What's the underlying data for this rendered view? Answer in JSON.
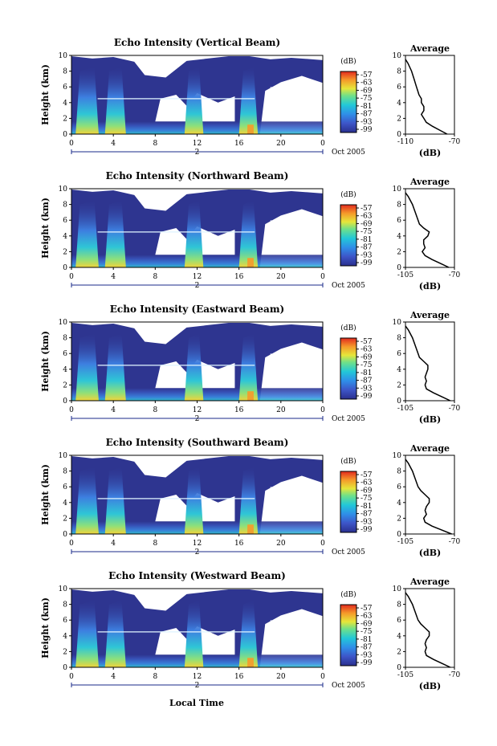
{
  "figure": {
    "x_axis_label": "Local Time",
    "date_label": "Oct 2005",
    "day_label": "2",
    "average_title": "Average",
    "colorbar_unit": "(dB)",
    "average_xlabel": "(dB)"
  },
  "chart_data": [
    {
      "type": "heatmap",
      "title": "Echo Intensity (Vertical Beam)",
      "ylabel": "Height (km)",
      "xlim": [
        0,
        24
      ],
      "ylim": [
        0,
        10
      ],
      "x_ticks": [
        "0",
        "4",
        "8",
        "12",
        "16",
        "20",
        "0"
      ],
      "y_ticks": [
        "0",
        "2",
        "4",
        "6",
        "8",
        "10"
      ],
      "colorbar_ticks": [
        "-57",
        "-63",
        "-69",
        "-75",
        "-81",
        "-87",
        "-93",
        "-99"
      ],
      "profile": {
        "xlim": [
          -110,
          -70
        ],
        "x_ticks": [
          "-110",
          "-70"
        ],
        "y_ticks": [
          "0",
          "2",
          "4",
          "6",
          "8",
          "10"
        ],
        "height": [
          0,
          0.5,
          1,
          1.5,
          2,
          2.5,
          3,
          3.5,
          4,
          4.5,
          5,
          5.5,
          6,
          7,
          8,
          9,
          9.5
        ],
        "db": [
          -76,
          -82,
          -88,
          -93,
          -95,
          -97,
          -95,
          -95,
          -97,
          -97,
          -99,
          -100,
          -101,
          -103,
          -105,
          -108,
          -110
        ]
      }
    },
    {
      "type": "heatmap",
      "title": "Echo Intensity (Northward Beam)",
      "ylabel": "Height (km)",
      "xlim": [
        0,
        24
      ],
      "ylim": [
        0,
        10
      ],
      "x_ticks": [
        "0",
        "4",
        "8",
        "12",
        "16",
        "20",
        "0"
      ],
      "y_ticks": [
        "0",
        "2",
        "4",
        "6",
        "8",
        "10"
      ],
      "colorbar_ticks": [
        "-57",
        "-63",
        "-69",
        "-75",
        "-81",
        "-87",
        "-93",
        "-99"
      ],
      "profile": {
        "xlim": [
          -105,
          -70
        ],
        "x_ticks": [
          "-105",
          "-70"
        ],
        "y_ticks": [
          "0",
          "2",
          "4",
          "6",
          "8",
          "10"
        ],
        "height": [
          0,
          0.5,
          1,
          1.5,
          2,
          2.5,
          3,
          3.5,
          4,
          4.5,
          5,
          5.5,
          6,
          7,
          8,
          9,
          9.5
        ],
        "db": [
          -74,
          -80,
          -86,
          -91,
          -93,
          -91,
          -92,
          -92,
          -89,
          -88,
          -92,
          -95,
          -96,
          -98,
          -100,
          -103,
          -105
        ]
      }
    },
    {
      "type": "heatmap",
      "title": "Echo Intensity (Eastward Beam)",
      "ylabel": "Height (km)",
      "xlim": [
        0,
        24
      ],
      "ylim": [
        0,
        10
      ],
      "x_ticks": [
        "0",
        "4",
        "8",
        "12",
        "16",
        "20",
        "0"
      ],
      "y_ticks": [
        "0",
        "2",
        "4",
        "6",
        "8",
        "10"
      ],
      "colorbar_ticks": [
        "-57",
        "-63",
        "-69",
        "-75",
        "-81",
        "-87",
        "-93",
        "-99"
      ],
      "profile": {
        "xlim": [
          -105,
          -70
        ],
        "x_ticks": [
          "-105",
          "-70"
        ],
        "y_ticks": [
          "0",
          "2",
          "4",
          "6",
          "8",
          "10"
        ],
        "height": [
          0,
          0.5,
          1,
          1.5,
          2,
          2.5,
          3,
          3.5,
          4,
          4.5,
          5,
          5.5,
          6,
          7,
          8,
          9,
          9.5
        ],
        "db": [
          -73,
          -79,
          -85,
          -90,
          -91,
          -90,
          -91,
          -90,
          -89,
          -89,
          -92,
          -95,
          -96,
          -98,
          -100,
          -103,
          -105
        ]
      }
    },
    {
      "type": "heatmap",
      "title": "Echo Intensity (Southward Beam)",
      "ylabel": "Height (km)",
      "xlim": [
        0,
        24
      ],
      "ylim": [
        0,
        10
      ],
      "x_ticks": [
        "0",
        "4",
        "8",
        "12",
        "16",
        "20",
        "0"
      ],
      "y_ticks": [
        "0",
        "2",
        "4",
        "6",
        "8",
        "10"
      ],
      "colorbar_ticks": [
        "-57",
        "-63",
        "-69",
        "-75",
        "-81",
        "-87",
        "-93",
        "-99"
      ],
      "profile": {
        "xlim": [
          -105,
          -70
        ],
        "x_ticks": [
          "-105",
          "-70"
        ],
        "y_ticks": [
          "0",
          "2",
          "4",
          "6",
          "8",
          "10"
        ],
        "height": [
          0,
          0.5,
          1,
          1.5,
          2,
          2.5,
          3,
          3.5,
          4,
          4.5,
          5,
          5.5,
          6,
          7,
          8,
          9,
          9.5
        ],
        "db": [
          -72,
          -79,
          -86,
          -91,
          -92,
          -90,
          -91,
          -90,
          -88,
          -88,
          -91,
          -94,
          -96,
          -98,
          -100,
          -103,
          -105
        ]
      }
    },
    {
      "type": "heatmap",
      "title": "Echo Intensity (Westward Beam)",
      "ylabel": "Height (km)",
      "xlim": [
        0,
        24
      ],
      "ylim": [
        0,
        10
      ],
      "x_ticks": [
        "0",
        "4",
        "8",
        "12",
        "16",
        "20",
        "0"
      ],
      "y_ticks": [
        "0",
        "2",
        "4",
        "6",
        "8",
        "10"
      ],
      "colorbar_ticks": [
        "-57",
        "-63",
        "-69",
        "-75",
        "-81",
        "-87",
        "-93",
        "-99"
      ],
      "profile": {
        "xlim": [
          -105,
          -70
        ],
        "x_ticks": [
          "-105",
          "-70"
        ],
        "y_ticks": [
          "0",
          "2",
          "4",
          "6",
          "8",
          "10"
        ],
        "height": [
          0,
          0.5,
          1,
          1.5,
          2,
          2.5,
          3,
          3.5,
          4,
          4.5,
          5,
          5.5,
          6,
          7,
          8,
          9,
          9.5
        ],
        "db": [
          -73,
          -79,
          -85,
          -90,
          -91,
          -90,
          -91,
          -90,
          -88,
          -88,
          -91,
          -94,
          -96,
          -98,
          -100,
          -103,
          -105
        ]
      }
    }
  ]
}
